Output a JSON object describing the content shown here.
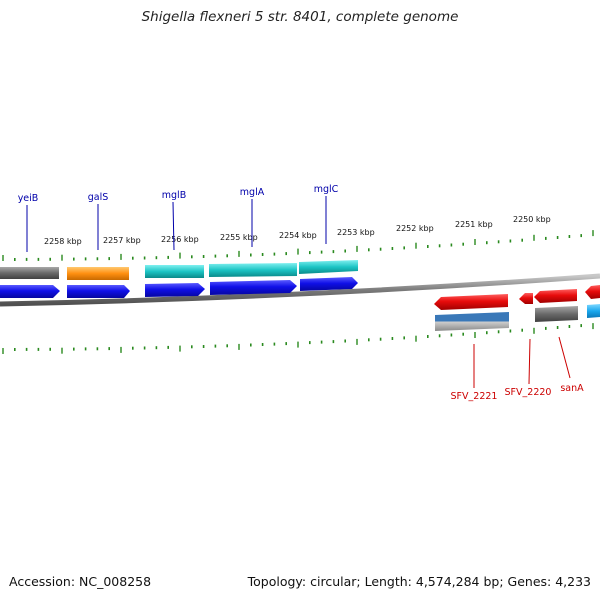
{
  "title": "Shigella flexneri 5 str. 8401, complete genome",
  "footer": {
    "accession": "Accession: NC_008258",
    "topology": "Topology: circular; Length: 4,574,284 bp; Genes: 4,233"
  },
  "ruler": {
    "labels": [
      "2258 kbp",
      "2257 kbp",
      "2256 kbp",
      "2255 kbp",
      "2254 kbp",
      "2253 kbp",
      "2252 kbp",
      "2251 kbp",
      "2250 kbp"
    ]
  },
  "genes_top": [
    {
      "name": "yeiB",
      "color": "#0000aa"
    },
    {
      "name": "galS",
      "color": "#0000aa"
    },
    {
      "name": "mglB",
      "color": "#0000aa"
    },
    {
      "name": "mglA",
      "color": "#0000aa"
    },
    {
      "name": "mglC",
      "color": "#0000aa"
    }
  ],
  "genes_bottom": [
    {
      "name": "SFV_2221",
      "color": "#cc0000"
    },
    {
      "name": "SFV_2220",
      "color": "#cc0000"
    },
    {
      "name": "sanA",
      "color": "#cc0000"
    }
  ],
  "colors": {
    "tick": "#2a8a1f",
    "backbone": "#888888",
    "forward_cds": "#1414e0",
    "reverse_cds": "#e01414",
    "grey": "#6a6a6a",
    "orange": "#ff9a1a",
    "cyan": "#22c8c8",
    "steelblue": "#3a78b8",
    "lightblue": "#22aaee"
  }
}
